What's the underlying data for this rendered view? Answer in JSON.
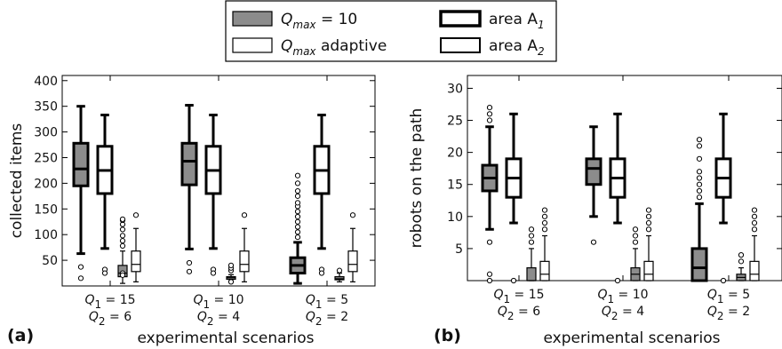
{
  "legend": {
    "items": [
      {
        "label": "Q",
        "sub": "max",
        "suffix": " = 10",
        "style": "grey-thin",
        "math": true
      },
      {
        "label": "Q",
        "sub": "max",
        "suffix": " adaptive",
        "style": "white-thin",
        "math": true
      },
      {
        "label": "area A",
        "sub": "1",
        "suffix": "",
        "style": "white-thick",
        "math": false
      },
      {
        "label": "area A",
        "sub": "2",
        "suffix": "",
        "style": "white-medium",
        "math": false
      }
    ]
  },
  "chart_data": [
    {
      "type": "box",
      "panel": "(a)",
      "ylabel": "collected items",
      "xlabel": "experimental scenarios",
      "ylim": [
        0,
        410
      ],
      "yticks": [
        50,
        100,
        150,
        200,
        250,
        300,
        350,
        400
      ],
      "categories": [
        {
          "line1": "Q1 = 15",
          "line2": "Q2 = 6"
        },
        {
          "line1": "Q1 = 10",
          "line2": "Q2 = 4"
        },
        {
          "line1": "Q1 = 5",
          "line2": "Q2 = 2"
        }
      ],
      "boxes": [
        {
          "group": 0,
          "series": "Qmax = 10, area A1",
          "q1": 195,
          "median": 228,
          "q3": 278,
          "whislo": 63,
          "whishi": 350,
          "fliers": [
            37,
            15
          ]
        },
        {
          "group": 0,
          "series": "Qmax adaptive, area A1",
          "q1": 180,
          "median": 225,
          "q3": 272,
          "whislo": 73,
          "whishi": 333,
          "fliers": [
            32,
            25
          ]
        },
        {
          "group": 0,
          "series": "Qmax = 10, area A2",
          "q1": 18,
          "median": 25,
          "q3": 40,
          "whislo": 5,
          "whishi": 68,
          "fliers": [
            78,
            88,
            98,
            110,
            120,
            128,
            130,
            25,
            21
          ]
        },
        {
          "group": 0,
          "series": "Qmax adaptive, area A2",
          "q1": 28,
          "median": 42,
          "q3": 68,
          "whislo": 8,
          "whishi": 112,
          "fliers": [
            138
          ]
        },
        {
          "group": 1,
          "series": "Qmax = 10, area A1",
          "q1": 197,
          "median": 243,
          "q3": 278,
          "whislo": 72,
          "whishi": 352,
          "fliers": [
            45,
            28
          ]
        },
        {
          "group": 1,
          "series": "Qmax adaptive, area A1",
          "q1": 180,
          "median": 225,
          "q3": 272,
          "whislo": 73,
          "whishi": 333,
          "fliers": [
            32,
            25
          ]
        },
        {
          "group": 1,
          "series": "Qmax = 10, area A2",
          "q1": 13,
          "median": 16,
          "q3": 18,
          "whislo": 10,
          "whishi": 22,
          "fliers": [
            30,
            35,
            40,
            8
          ]
        },
        {
          "group": 1,
          "series": "Qmax adaptive, area A2",
          "q1": 28,
          "median": 42,
          "q3": 68,
          "whislo": 8,
          "whishi": 112,
          "fliers": [
            138
          ]
        },
        {
          "group": 2,
          "series": "Qmax = 10, area A1",
          "q1": 25,
          "median": 40,
          "q3": 55,
          "whislo": 5,
          "whishi": 85,
          "fliers": [
            95,
            105,
            115,
            125,
            135,
            145,
            155,
            162,
            175,
            185,
            200,
            215
          ]
        },
        {
          "group": 2,
          "series": "Qmax adaptive, area A1",
          "q1": 180,
          "median": 225,
          "q3": 272,
          "whislo": 73,
          "whishi": 333,
          "fliers": [
            32,
            25
          ]
        },
        {
          "group": 2,
          "series": "Qmax = 10, area A2",
          "q1": 12,
          "median": 14,
          "q3": 18,
          "whislo": 8,
          "whishi": 25,
          "fliers": [
            30
          ]
        },
        {
          "group": 2,
          "series": "Qmax adaptive, area A2",
          "q1": 28,
          "median": 42,
          "q3": 68,
          "whislo": 8,
          "whishi": 112,
          "fliers": [
            138
          ]
        }
      ]
    },
    {
      "type": "box",
      "panel": "(b)",
      "ylabel": "robots on the path",
      "xlabel": "experimental scenarios",
      "ylim": [
        0,
        32
      ],
      "yticks": [
        5,
        10,
        15,
        20,
        25,
        30
      ],
      "categories": [
        {
          "line1": "Q1 = 15",
          "line2": "Q2 = 6"
        },
        {
          "line1": "Q1 = 10",
          "line2": "Q2 = 4"
        },
        {
          "line1": "Q1 = 5",
          "line2": "Q2 = 2"
        }
      ],
      "boxes": [
        {
          "group": 0,
          "series": "Qmax = 10, area A1",
          "q1": 14,
          "median": 16,
          "q3": 18,
          "whislo": 8,
          "whishi": 24,
          "fliers": [
            25,
            26,
            27,
            6,
            1,
            0
          ]
        },
        {
          "group": 0,
          "series": "Qmax adaptive, area A1",
          "q1": 13,
          "median": 16,
          "q3": 19,
          "whislo": 9,
          "whishi": 26,
          "fliers": [
            0
          ]
        },
        {
          "group": 0,
          "series": "Qmax = 10, area A2",
          "q1": 0,
          "median": 0,
          "q3": 2,
          "whislo": 0,
          "whishi": 5,
          "fliers": [
            6,
            7,
            8
          ]
        },
        {
          "group": 0,
          "series": "Qmax adaptive, area A2",
          "q1": 0,
          "median": 1,
          "q3": 3,
          "whislo": 0,
          "whishi": 7,
          "fliers": [
            8,
            9,
            10,
            11
          ]
        },
        {
          "group": 1,
          "series": "Qmax = 10, area A1",
          "q1": 15,
          "median": 17.5,
          "q3": 19,
          "whislo": 10,
          "whishi": 24,
          "fliers": [
            6
          ]
        },
        {
          "group": 1,
          "series": "Qmax adaptive, area A1",
          "q1": 13,
          "median": 16,
          "q3": 19,
          "whislo": 9,
          "whishi": 26,
          "fliers": [
            0
          ]
        },
        {
          "group": 1,
          "series": "Qmax = 10, area A2",
          "q1": 0,
          "median": 1,
          "q3": 2,
          "whislo": 0,
          "whishi": 5,
          "fliers": [
            6,
            7,
            8
          ]
        },
        {
          "group": 1,
          "series": "Qmax adaptive, area A2",
          "q1": 0,
          "median": 1,
          "q3": 3,
          "whislo": 0,
          "whishi": 7,
          "fliers": [
            8,
            9,
            10,
            11
          ]
        },
        {
          "group": 2,
          "series": "Qmax = 10, area A1",
          "q1": 0,
          "median": 2,
          "q3": 5,
          "whislo": 0,
          "whishi": 12,
          "fliers": [
            13,
            14,
            15,
            16,
            17,
            19,
            21,
            22
          ]
        },
        {
          "group": 2,
          "series": "Qmax adaptive, area A1",
          "q1": 13,
          "median": 16,
          "q3": 19,
          "whislo": 9,
          "whishi": 26,
          "fliers": [
            0
          ]
        },
        {
          "group": 2,
          "series": "Qmax = 10, area A2",
          "q1": 0,
          "median": 0.5,
          "q3": 1,
          "whislo": 0,
          "whishi": 2,
          "fliers": [
            3,
            4
          ]
        },
        {
          "group": 2,
          "series": "Qmax adaptive, area A2",
          "q1": 0,
          "median": 1,
          "q3": 3,
          "whislo": 0,
          "whishi": 7,
          "fliers": [
            8,
            9,
            10,
            11
          ]
        }
      ]
    }
  ]
}
